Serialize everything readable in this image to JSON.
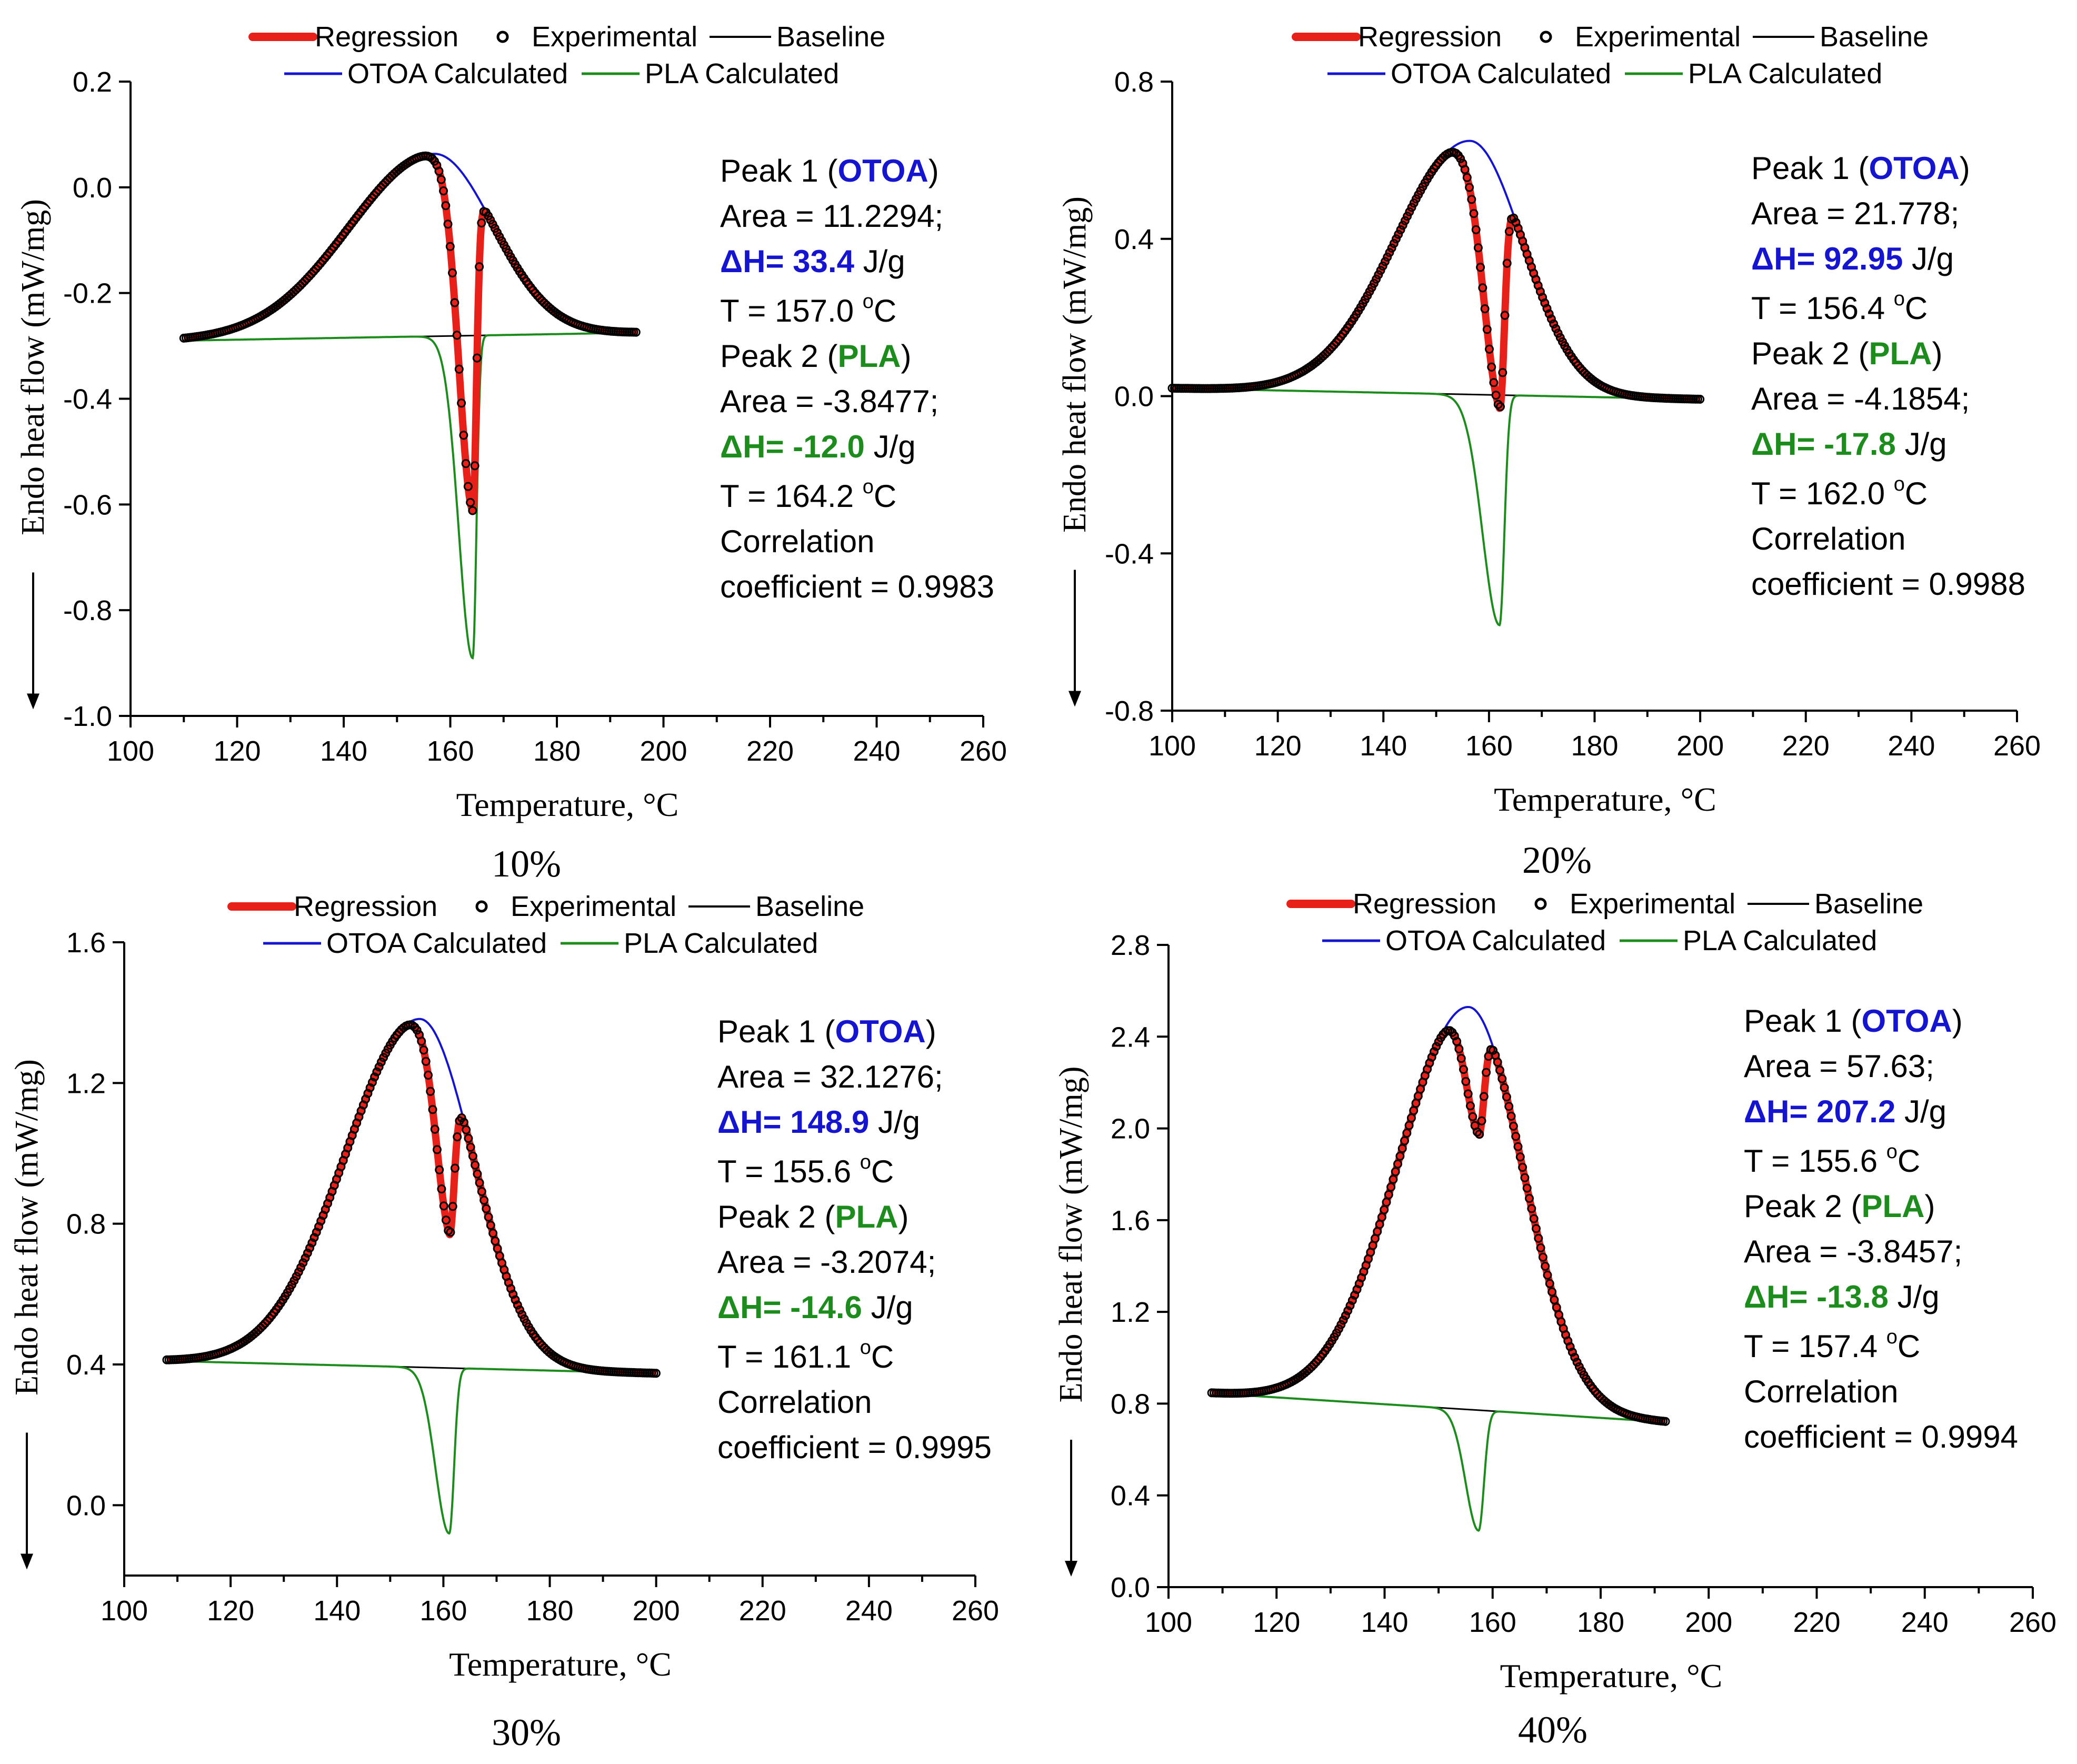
{
  "legend": {
    "regression": "Regression",
    "experimental": "Experimental",
    "baseline": "Baseline",
    "otoa": "OTOA Calculated",
    "pla": "PLA Calculated"
  },
  "colors": {
    "regression": "#e8201a",
    "experimental": "#000000",
    "baseline": "#000000",
    "otoa": "#1515d0",
    "pla": "#1c8c1c",
    "text": "#000000"
  },
  "chart_data": [
    {
      "type": "line",
      "caption": "10%",
      "xlabel": "Temperature, °C",
      "ylabel": "Endo heat flow (mW/mg)",
      "xlim": [
        100,
        260
      ],
      "xticks": [
        "100",
        "120",
        "140",
        "160",
        "180",
        "200",
        "220",
        "240",
        "260"
      ],
      "ylim": [
        -1.0,
        0.2
      ],
      "yticks": [
        "-1.0",
        "-0.8",
        "-0.6",
        "-0.4",
        "-0.2",
        "0.0",
        "0.2"
      ],
      "range": [
        110,
        195
      ],
      "baseline_ends": [
        -0.29,
        -0.275
      ],
      "otoa": {
        "peak_T": 157.0,
        "height": 0.345,
        "sigma_left": 16,
        "sigma_right": 11
      },
      "pla": {
        "peak_T": 164.2,
        "depth": 0.61,
        "sigma_left": 2.6,
        "sigma_right": 0.7
      },
      "annotation": {
        "peak1": "Peak 1 (",
        "peak1_name": "OTOA",
        "peak1_close": ")",
        "area1": "Area =  11.2294;",
        "dh1": "ΔH= 33.4",
        "dh1_unit": " J/g",
        "t1_prefix": "T = 157.0 ",
        "t1_unit": "C",
        "peak2": "Peak 2 (",
        "peak2_name": "PLA",
        "peak2_close": ")",
        "area2": "Area  = -3.8477;",
        "dh2": "ΔH= -12.0",
        "dh2_unit": " J/g",
        "t2_prefix": "T = 164.2 ",
        "t2_unit": "C",
        "corr1": "Correlation",
        "corr2": "coefficient = 0.9983"
      }
    },
    {
      "type": "line",
      "caption": "20%",
      "xlabel": "Temperature, °C",
      "ylabel": "Endo heat flow (mW/mg)",
      "xlim": [
        100,
        260
      ],
      "xticks": [
        "100",
        "120",
        "140",
        "160",
        "180",
        "200",
        "220",
        "240",
        "260"
      ],
      "ylim": [
        -0.8,
        0.8
      ],
      "yticks": [
        "-0.8",
        "-0.4",
        "0.0",
        "0.4",
        "0.8"
      ],
      "range": [
        100,
        200
      ],
      "baseline_ends": [
        0.02,
        -0.008
      ],
      "otoa": {
        "peak_T": 156.4,
        "height": 0.645,
        "sigma_left": 14,
        "sigma_right": 10
      },
      "pla": {
        "peak_T": 162.0,
        "depth": 0.585,
        "sigma_left": 3.2,
        "sigma_right": 0.9
      },
      "annotation": {
        "peak1": "Peak 1 (",
        "peak1_name": "OTOA",
        "peak1_close": ")",
        "area1": "Area =  21.778;",
        "dh1": "ΔH= 92.95",
        "dh1_unit": " J/g",
        "t1_prefix": "T = 156.4 ",
        "t1_unit": "C",
        "peak2": "Peak 2 (",
        "peak2_name": "PLA",
        "peak2_close": ")",
        "area2": "Area  = -4.1854;",
        "dh2": "ΔH= -17.8",
        "dh2_unit": " J/g",
        "t2_prefix": "T = 162.0 ",
        "t2_unit": "C",
        "corr1": "Correlation",
        "corr2": "coefficient = 0.9988"
      }
    },
    {
      "type": "line",
      "caption": "30%",
      "xlabel": "Temperature, °C",
      "ylabel": "Endo heat flow (mW/mg)",
      "xlim": [
        100,
        260
      ],
      "xticks": [
        "100",
        "120",
        "140",
        "160",
        "180",
        "200",
        "220",
        "240",
        "260"
      ],
      "ylim": [
        -0.2,
        1.6
      ],
      "yticks": [
        "0.0",
        "0.4",
        "0.8",
        "1.2",
        "1.6"
      ],
      "range": [
        108,
        200
      ],
      "baseline_ends": [
        0.41,
        0.375
      ],
      "otoa": {
        "peak_T": 155.6,
        "height": 0.99,
        "sigma_left": 14,
        "sigma_right": 10
      },
      "pla": {
        "peak_T": 161.1,
        "depth": 0.47,
        "sigma_left": 2.6,
        "sigma_right": 0.9
      },
      "annotation": {
        "peak1": "Peak 1 (",
        "peak1_name": "OTOA",
        "peak1_close": ")",
        "area1": "Area =  32.1276;",
        "dh1": "ΔH= 148.9",
        "dh1_unit": " J/g",
        "t1_prefix": "T = 155.6 ",
        "t1_unit": "C",
        "peak2": "Peak 2 (",
        "peak2_name": "PLA",
        "peak2_close": ")",
        "area2": "Area  = -3.2074;",
        "dh2": "ΔH= -14.6",
        "dh2_unit": " J/g",
        "t2_prefix": "T = 161.1 ",
        "t2_unit": "C",
        "corr1": "Correlation",
        "corr2": "coefficient = 0.9995"
      }
    },
    {
      "type": "line",
      "caption": "40%",
      "xlabel": "Temperature, °C",
      "ylabel": "Endo heat flow (mW/mg)",
      "xlim": [
        100,
        260
      ],
      "xticks": [
        "100",
        "120",
        "140",
        "160",
        "180",
        "200",
        "220",
        "240",
        "260"
      ],
      "ylim": [
        0.0,
        2.8
      ],
      "yticks": [
        "0.0",
        "0.4",
        "0.8",
        "1.2",
        "1.6",
        "2.0",
        "2.4",
        "2.8"
      ],
      "range": [
        108,
        192
      ],
      "baseline_ends": [
        0.845,
        0.72
      ],
      "otoa": {
        "peak_T": 155.6,
        "height": 1.755,
        "sigma_left": 13,
        "sigma_right": 10
      },
      "pla": {
        "peak_T": 157.4,
        "depth": 0.525,
        "sigma_left": 2.4,
        "sigma_right": 1.0
      },
      "annotation": {
        "peak1": "Peak 1 (",
        "peak1_name": "OTOA",
        "peak1_close": ")",
        "area1": "Area =  57.63;",
        "dh1": "ΔH= 207.2",
        "dh1_unit": " J/g",
        "t1_prefix": "T = 155.6 ",
        "t1_unit": "C",
        "peak2": "Peak 2 (",
        "peak2_name": "PLA",
        "peak2_close": ")",
        "area2": "Area  = -3.8457;",
        "dh2": "ΔH= -13.8",
        "dh2_unit": " J/g",
        "t2_prefix": "T = 157.4 ",
        "t2_unit": "C",
        "corr1": "Correlation",
        "corr2": "coefficient = 0.9994"
      }
    }
  ]
}
